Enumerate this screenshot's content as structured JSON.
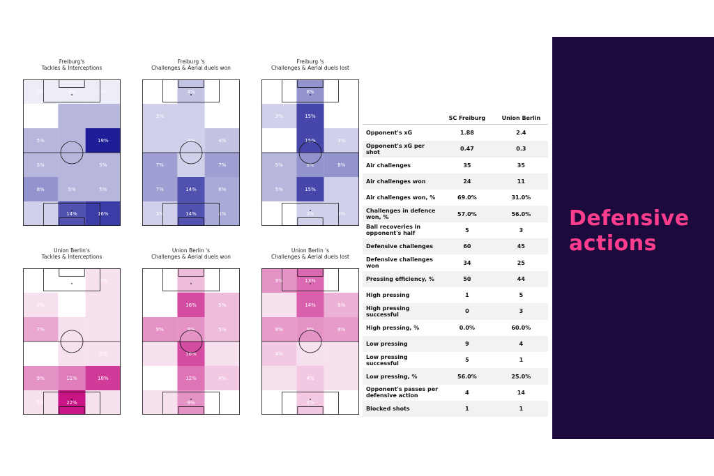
{
  "colors": {
    "freiburg_scale": [
      "#ffffff",
      "#00008b"
    ],
    "union_scale": [
      "#ffffff",
      "#c71585"
    ],
    "panel_bg": "#1c0a3c",
    "panel_title": "#ff3d8e"
  },
  "side_panel": {
    "title_line1": "Defensive",
    "title_line2": "actions"
  },
  "chart_data": [
    {
      "type": "heatmap",
      "title_line1": "Freiburg's",
      "title_line2": "Tackles & Interceptions",
      "team": "freiburg",
      "rows": [
        [
          {
            "v": 0.01,
            "label": "0%"
          },
          {
            "v": 0.01,
            "label": "0%"
          },
          {
            "v": 0.01,
            "label": "0%"
          }
        ],
        [
          {
            "v": 0.0,
            "label": "0%"
          },
          {
            "v": 0.05,
            "label": ""
          },
          {
            "v": 0.05,
            "label": ""
          }
        ],
        [
          {
            "v": 0.05,
            "label": "5%"
          },
          {
            "v": 0.05,
            "label": ""
          },
          {
            "v": 0.19,
            "label": "19%"
          }
        ],
        [
          {
            "v": 0.05,
            "label": "5%"
          },
          {
            "v": 0.05,
            "label": ""
          },
          {
            "v": 0.05,
            "label": "5%"
          }
        ],
        [
          {
            "v": 0.08,
            "label": "8%"
          },
          {
            "v": 0.05,
            "label": "5%"
          },
          {
            "v": 0.05,
            "label": "5%"
          }
        ],
        [
          {
            "v": 0.03,
            "label": ""
          },
          {
            "v": 0.14,
            "label": "14%"
          },
          {
            "v": 0.16,
            "label": "16%"
          }
        ]
      ]
    },
    {
      "type": "heatmap",
      "title_line1": "Freiburg 's",
      "title_line2": "Challenges & Aerial duels won",
      "team": "freiburg",
      "rows": [
        [
          {
            "v": 0.0,
            "label": "0%"
          },
          {
            "v": 0.04,
            "label": "4%"
          },
          {
            "v": 0.0,
            "label": ""
          }
        ],
        [
          {
            "v": 0.03,
            "label": "3%"
          },
          {
            "v": 0.03,
            "label": ""
          },
          {
            "v": 0.0,
            "label": "0%"
          }
        ],
        [
          {
            "v": 0.03,
            "label": ""
          },
          {
            "v": 0.03,
            "label": "3%"
          },
          {
            "v": 0.04,
            "label": "4%"
          }
        ],
        [
          {
            "v": 0.07,
            "label": "7%"
          },
          {
            "v": 0.03,
            "label": ""
          },
          {
            "v": 0.07,
            "label": "7%"
          }
        ],
        [
          {
            "v": 0.07,
            "label": "7%"
          },
          {
            "v": 0.14,
            "label": "14%"
          },
          {
            "v": 0.06,
            "label": "6%"
          }
        ],
        [
          {
            "v": 0.03,
            "label": "3%"
          },
          {
            "v": 0.14,
            "label": "14%"
          },
          {
            "v": 0.06,
            "label": "6%"
          }
        ]
      ]
    },
    {
      "type": "heatmap",
      "title_line1": "Freiburg 's",
      "title_line2": "Challenges & Aerial duels lost",
      "team": "freiburg",
      "rows": [
        [
          {
            "v": 0.0,
            "label": "0%"
          },
          {
            "v": 0.08,
            "label": "8%"
          },
          {
            "v": 0.0,
            "label": ""
          }
        ],
        [
          {
            "v": 0.03,
            "label": "3%"
          },
          {
            "v": 0.15,
            "label": "15%"
          },
          {
            "v": 0.0,
            "label": "0%"
          }
        ],
        [
          {
            "v": 0.0,
            "label": ""
          },
          {
            "v": 0.15,
            "label": "15%"
          },
          {
            "v": 0.03,
            "label": "3%"
          }
        ],
        [
          {
            "v": 0.05,
            "label": "5%"
          },
          {
            "v": 0.08,
            "label": "8%"
          },
          {
            "v": 0.08,
            "label": "8%"
          }
        ],
        [
          {
            "v": 0.05,
            "label": "5%"
          },
          {
            "v": 0.15,
            "label": "15%"
          },
          {
            "v": 0.03,
            "label": ""
          }
        ],
        [
          {
            "v": 0.0,
            "label": ""
          },
          {
            "v": 0.03,
            "label": "3%"
          },
          {
            "v": 0.03,
            "label": "3%"
          }
        ]
      ]
    },
    {
      "type": "heatmap",
      "title_line1": "Union Berlin's",
      "title_line2": "Tackles & Interceptions",
      "team": "union",
      "rows": [
        [
          {
            "v": 0.0,
            "label": "0%"
          },
          {
            "v": 0.0,
            "label": ""
          },
          {
            "v": 0.02,
            "label": "2%"
          }
        ],
        [
          {
            "v": 0.02,
            "label": "2%"
          },
          {
            "v": 0.0,
            "label": "0%"
          },
          {
            "v": 0.02,
            "label": ""
          }
        ],
        [
          {
            "v": 0.07,
            "label": "7%"
          },
          {
            "v": 0.02,
            "label": ""
          },
          {
            "v": 0.02,
            "label": ""
          }
        ],
        [
          {
            "v": 0.0,
            "label": ""
          },
          {
            "v": 0.02,
            "label": "2%"
          },
          {
            "v": 0.02,
            "label": "2%"
          }
        ],
        [
          {
            "v": 0.09,
            "label": "9%"
          },
          {
            "v": 0.11,
            "label": "11%"
          },
          {
            "v": 0.18,
            "label": "18%"
          }
        ],
        [
          {
            "v": 0.02,
            "label": "2%"
          },
          {
            "v": 0.22,
            "label": "22%"
          },
          {
            "v": 0.02,
            "label": ""
          }
        ]
      ]
    },
    {
      "type": "heatmap",
      "title_line1": "Union Berlin 's",
      "title_line2": "Challenges & Aerial duels won",
      "team": "union",
      "rows": [
        [
          {
            "v": 0.0,
            "label": "0%"
          },
          {
            "v": 0.05,
            "label": ""
          },
          {
            "v": 0.0,
            "label": ""
          }
        ],
        [
          {
            "v": 0.0,
            "label": "0%"
          },
          {
            "v": 0.16,
            "label": "16%"
          },
          {
            "v": 0.05,
            "label": "5%"
          }
        ],
        [
          {
            "v": 0.09,
            "label": "9%"
          },
          {
            "v": 0.09,
            "label": "9%"
          },
          {
            "v": 0.05,
            "label": "5%"
          }
        ],
        [
          {
            "v": 0.02,
            "label": ""
          },
          {
            "v": 0.16,
            "label": "16%"
          },
          {
            "v": 0.02,
            "label": ""
          }
        ],
        [
          {
            "v": 0.0,
            "label": "0%"
          },
          {
            "v": 0.12,
            "label": "12%"
          },
          {
            "v": 0.04,
            "label": "4%"
          }
        ],
        [
          {
            "v": 0.02,
            "label": ""
          },
          {
            "v": 0.09,
            "label": "9%"
          },
          {
            "v": 0.0,
            "label": "0%"
          }
        ]
      ]
    },
    {
      "type": "heatmap",
      "title_line1": "Union Berlin 's",
      "title_line2": "Challenges & Aerial duels lost",
      "team": "union",
      "rows": [
        [
          {
            "v": 0.09,
            "label": "9%"
          },
          {
            "v": 0.13,
            "label": "13%"
          },
          {
            "v": 0.0,
            "label": ""
          }
        ],
        [
          {
            "v": 0.02,
            "label": ""
          },
          {
            "v": 0.14,
            "label": "14%"
          },
          {
            "v": 0.06,
            "label": "6%"
          }
        ],
        [
          {
            "v": 0.08,
            "label": "8%"
          },
          {
            "v": 0.09,
            "label": "9%"
          },
          {
            "v": 0.08,
            "label": "8%"
          }
        ],
        [
          {
            "v": 0.04,
            "label": "4%"
          },
          {
            "v": 0.02,
            "label": ""
          },
          {
            "v": 0.02,
            "label": ""
          }
        ],
        [
          {
            "v": 0.02,
            "label": ""
          },
          {
            "v": 0.04,
            "label": "4%"
          },
          {
            "v": 0.02,
            "label": ""
          }
        ],
        [
          {
            "v": 0.0,
            "label": "0%"
          },
          {
            "v": 0.04,
            "label": "4%"
          },
          {
            "v": 0.0,
            "label": "0%"
          }
        ]
      ]
    },
    {
      "type": "table",
      "columns": [
        "",
        "SC Freiburg",
        "Union Berlin"
      ],
      "rows": [
        [
          "Opponent's xG",
          "1.88",
          "2.4"
        ],
        [
          "Opponent's xG per shot",
          "0.47",
          "0.3"
        ],
        [
          "Air challenges",
          "35",
          "35"
        ],
        [
          "Air challenges won",
          "24",
          "11"
        ],
        [
          "Air challenges won, %",
          "69.0%",
          "31.0%"
        ],
        [
          "Challenges in defence won, %",
          "57.0%",
          "56.0%"
        ],
        [
          "Ball recoveries in opponent's half",
          "5",
          "3"
        ],
        [
          "Defensive challenges",
          "60",
          "45"
        ],
        [
          "Defensive challenges won",
          "34",
          "25"
        ],
        [
          "Pressing efficiency, %",
          "50",
          "44"
        ],
        [
          "High pressing",
          "1",
          "5"
        ],
        [
          "High pressing successful",
          "0",
          "3"
        ],
        [
          "High pressing, %",
          "0.0%",
          "60.0%"
        ],
        [
          "Low pressing",
          "9",
          "4"
        ],
        [
          "Low pressing successful",
          "5",
          "1"
        ],
        [
          "Low pressing, %",
          "56.0%",
          "25.0%"
        ],
        [
          "Opponent's passes per defensive action",
          "4",
          "14"
        ],
        [
          "Blocked shots",
          "1",
          "1"
        ]
      ]
    }
  ]
}
